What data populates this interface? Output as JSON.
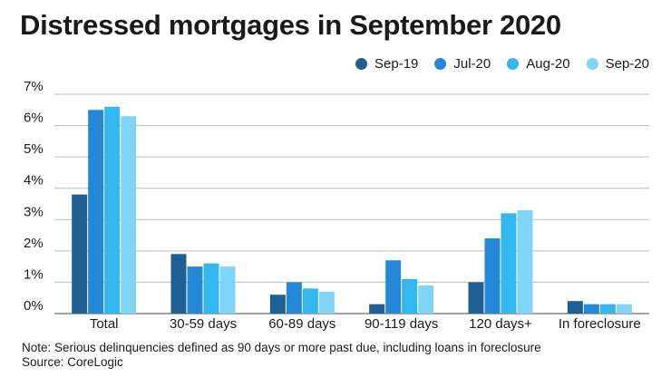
{
  "chart_data": {
    "type": "bar",
    "title": "Distressed mortgages in September 2020",
    "categories": [
      "Total",
      "30-59 days",
      "60-89 days",
      "90-119 days",
      "120 days+",
      "In foreclosure"
    ],
    "series": [
      {
        "name": "Sep-19",
        "color": "#1f5f94",
        "values": [
          3.8,
          1.9,
          0.6,
          0.3,
          1.0,
          0.4
        ]
      },
      {
        "name": "Jul-20",
        "color": "#2588d6",
        "values": [
          6.5,
          1.5,
          1.0,
          1.7,
          2.4,
          0.3
        ]
      },
      {
        "name": "Aug-20",
        "color": "#33b7f0",
        "values": [
          6.6,
          1.6,
          0.8,
          1.1,
          3.2,
          0.3
        ]
      },
      {
        "name": "Sep-20",
        "color": "#7fd5f8",
        "values": [
          6.3,
          1.5,
          0.7,
          0.9,
          3.3,
          0.3
        ]
      }
    ],
    "yticks": [
      "0%",
      "1%",
      "2%",
      "3%",
      "4%",
      "5%",
      "6%",
      "7%"
    ],
    "ylim": [
      0,
      7
    ],
    "grid": true,
    "legend_position": "top-right"
  },
  "note": "Note: Serious delinquencies defined as 90 days or more past due, including loans in foreclosure",
  "source": "Source: CoreLogic"
}
